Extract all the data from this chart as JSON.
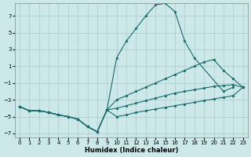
{
  "xlabel": "Humidex (Indice chaleur)",
  "background_color": "#cce8e8",
  "grid_color": "#aacccc",
  "line_color": "#1a6b6b",
  "xlim": [
    -0.5,
    23.5
  ],
  "ylim": [
    -7.5,
    8.5
  ],
  "xticks": [
    0,
    1,
    2,
    3,
    4,
    5,
    6,
    7,
    8,
    9,
    10,
    11,
    12,
    13,
    14,
    15,
    16,
    17,
    18,
    19,
    20,
    21,
    22,
    23
  ],
  "yticks": [
    -7,
    -5,
    -3,
    -1,
    1,
    3,
    5,
    7
  ],
  "lines": [
    {
      "x": [
        0,
        1,
        2,
        3,
        4,
        5,
        6,
        7,
        8,
        9,
        10,
        11,
        12,
        13,
        14,
        15,
        16,
        17,
        18,
        21,
        22
      ],
      "y": [
        -3.8,
        -4.3,
        -4.3,
        -4.5,
        -4.8,
        -5.0,
        -5.3,
        -6.2,
        -6.8,
        -4.2,
        2.0,
        4.0,
        5.5,
        7.0,
        8.3,
        8.5,
        7.5,
        4.0,
        2.0,
        -2.0,
        -1.5
      ]
    },
    {
      "x": [
        0,
        1,
        2,
        3,
        4,
        5,
        6,
        7,
        8,
        9,
        10,
        11,
        12,
        13,
        14,
        15,
        16,
        17,
        18,
        19,
        20,
        21,
        22,
        23
      ],
      "y": [
        -3.8,
        -4.3,
        -4.3,
        -4.5,
        -4.8,
        -5.0,
        -5.3,
        -6.2,
        -6.8,
        -4.2,
        -3.0,
        -2.5,
        -2.0,
        -1.5,
        -1.0,
        -0.5,
        0.0,
        0.5,
        1.0,
        1.5,
        1.8,
        0.5,
        -0.5,
        -1.5
      ]
    },
    {
      "x": [
        0,
        1,
        2,
        3,
        4,
        5,
        6,
        7,
        8,
        9,
        10,
        11,
        12,
        13,
        14,
        15,
        16,
        17,
        18,
        19,
        20,
        21,
        22,
        23
      ],
      "y": [
        -3.8,
        -4.3,
        -4.3,
        -4.5,
        -4.8,
        -5.0,
        -5.3,
        -6.2,
        -6.8,
        -4.2,
        -4.0,
        -3.7,
        -3.4,
        -3.1,
        -2.8,
        -2.5,
        -2.2,
        -2.0,
        -1.8,
        -1.6,
        -1.4,
        -1.3,
        -1.2,
        -1.5
      ]
    },
    {
      "x": [
        0,
        1,
        2,
        3,
        4,
        5,
        6,
        7,
        8,
        9,
        10,
        11,
        12,
        13,
        14,
        15,
        16,
        17,
        18,
        19,
        20,
        21,
        22,
        23
      ],
      "y": [
        -3.8,
        -4.3,
        -4.3,
        -4.5,
        -4.8,
        -5.0,
        -5.3,
        -6.2,
        -6.8,
        -4.2,
        -5.0,
        -4.8,
        -4.5,
        -4.3,
        -4.1,
        -3.9,
        -3.7,
        -3.5,
        -3.3,
        -3.1,
        -2.9,
        -2.7,
        -2.5,
        -1.5
      ]
    }
  ]
}
